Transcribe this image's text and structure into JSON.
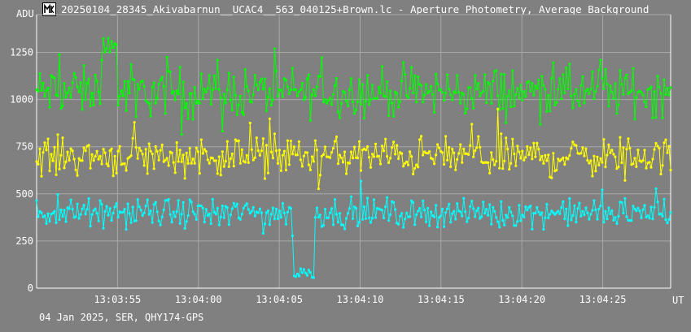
{
  "window": {
    "title": "20250104_28345_Akivabarnun__UCAC4__563_040125+Brown.lc - Aperture Photometry, Average Background"
  },
  "footer": {
    "text": "04 Jan 2025, SER, QHY174-GPS"
  },
  "chart_data": {
    "type": "line",
    "title": "",
    "xlabel": "UT",
    "ylabel": "ADU",
    "x_ticks": [
      "13:03:55",
      "13:04:00",
      "13:04:05",
      "13:04:10",
      "13:04:15",
      "13:04:20",
      "13:04:25"
    ],
    "x_tick_seconds": [
      55,
      60,
      65,
      70,
      75,
      80,
      85
    ],
    "xlim_seconds": [
      50,
      89.2
    ],
    "y_ticks": [
      0,
      250,
      500,
      750,
      1000,
      1250
    ],
    "ylim": [
      0,
      1450
    ],
    "grid": true,
    "markers": "dots",
    "series": [
      {
        "color": "#00ff00",
        "baseline": 1040,
        "noise": 90,
        "notes": "occasional peaks up to ~1390 near 13:03:54.5",
        "events": [
          {
            "start": 54.0,
            "end": 55.0,
            "level": 1280
          }
        ]
      },
      {
        "color": "#ffff00",
        "baseline": 700,
        "noise": 70,
        "events": []
      },
      {
        "color": "#00ffff",
        "baseline": 400,
        "noise": 50,
        "events": [
          {
            "start": 65.9,
            "end": 67.15,
            "level": 80
          }
        ]
      }
    ]
  }
}
